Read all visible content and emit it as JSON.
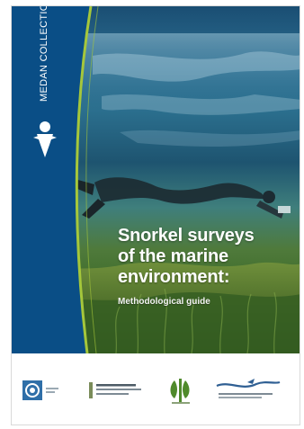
{
  "cover": {
    "series_label": "MEDAN COLLECTION",
    "title": "Snorkel surveys\nof the marine\nenvironment:",
    "subtitle": "Methodological guide"
  },
  "colors": {
    "water_top": "#1a4e73",
    "water_mid": "#2b6f8e",
    "seagrass": "#3d6a28",
    "side_band_blue": "#0a4e86",
    "accent_green": "#a5c73b"
  },
  "partners": [
    {
      "icon": "spiral-emblem-icon"
    },
    {
      "icon": "institution-wordmark-icon"
    },
    {
      "icon": "leaf-emblem-icon"
    },
    {
      "icon": "wave-bird-emblem-icon"
    }
  ]
}
